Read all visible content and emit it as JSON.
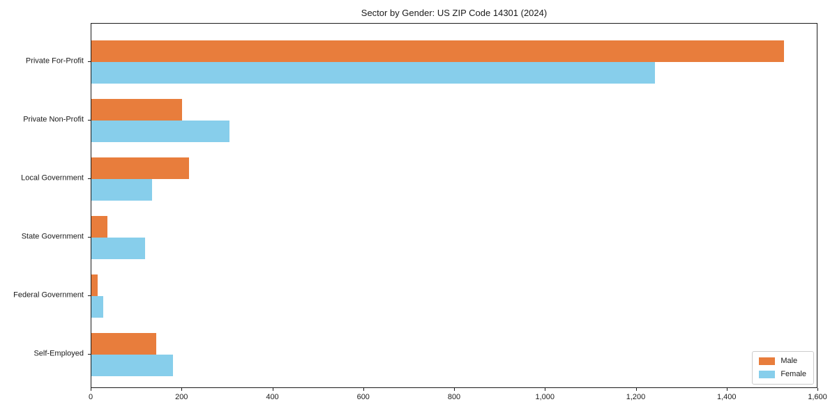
{
  "chart_data": {
    "type": "bar",
    "orientation": "horizontal",
    "title": "Sector by Gender: US ZIP Code 14301 (2024)",
    "categories": [
      "Private For-Profit",
      "Private Non-Profit",
      "Local Government",
      "State Government",
      "Federal Government",
      "Self-Employed"
    ],
    "series": [
      {
        "name": "Male",
        "color": "#e87d3c",
        "values": [
          1525,
          200,
          215,
          35,
          14,
          143
        ]
      },
      {
        "name": "Female",
        "color": "#87ceeb",
        "values": [
          1240,
          304,
          134,
          118,
          26,
          180
        ]
      }
    ],
    "xlabel": "",
    "ylabel": "",
    "xlim": [
      0,
      1600
    ],
    "xticks": {
      "values": [
        0,
        200,
        400,
        600,
        800,
        1000,
        1200,
        1400,
        1600
      ],
      "labels": [
        "0",
        "200",
        "400",
        "600",
        "800",
        "1,000",
        "1,200",
        "1,400",
        "1,600"
      ]
    },
    "grid": false,
    "legend_position": "lower right"
  }
}
